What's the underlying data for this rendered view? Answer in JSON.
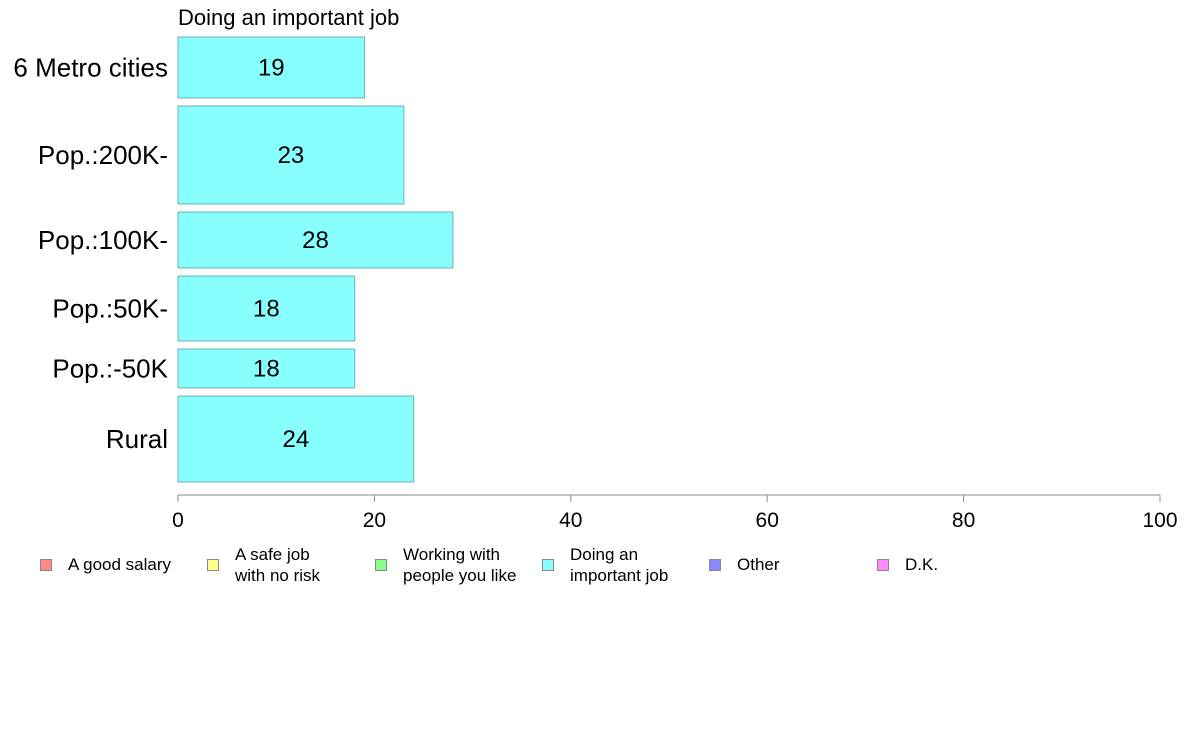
{
  "chart_data": {
    "type": "bar",
    "orientation": "horizontal",
    "title": "Doing an important job",
    "categories": [
      "6 Metro cities",
      "Pop.:200K-",
      "Pop.:100K-",
      "Pop.:50K-",
      "Pop.:-50K",
      "Rural"
    ],
    "values": [
      19,
      23,
      28,
      18,
      18,
      24
    ],
    "data_labels": [
      "19",
      "23",
      "28",
      "18",
      "18",
      "24"
    ],
    "xlim": [
      0,
      100
    ],
    "x_ticks": [
      "0",
      "20",
      "40",
      "60",
      "80",
      "100"
    ],
    "grid": false,
    "bar_color": "#88ffff",
    "bar_border_color": "#6fb0b0",
    "axis_color": "#888888",
    "legend_position": "bottom",
    "legend": [
      {
        "label": "A good salary",
        "color": "#ff8888"
      },
      {
        "label": "A safe job\nwith no risk",
        "color": "#ffff88"
      },
      {
        "label": "Working with\npeople you like",
        "color": "#88ff88"
      },
      {
        "label": "Doing an\nimportant job",
        "color": "#88ffff"
      },
      {
        "label": "Other",
        "color": "#8888ff"
      },
      {
        "label": "D.K.",
        "color": "#ff88ff"
      }
    ]
  }
}
